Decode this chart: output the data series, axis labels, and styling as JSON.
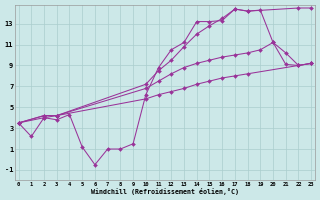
{
  "background_color": "#cce8e8",
  "grid_color": "#aacece",
  "line_color": "#993399",
  "xlim": [
    -0.3,
    23.3
  ],
  "ylim": [
    -2.0,
    14.8
  ],
  "xticks": [
    0,
    1,
    2,
    3,
    4,
    5,
    6,
    7,
    8,
    9,
    10,
    11,
    12,
    13,
    14,
    15,
    16,
    17,
    18,
    19,
    20,
    21,
    22,
    23
  ],
  "yticks": [
    -1,
    1,
    3,
    5,
    7,
    9,
    11,
    13
  ],
  "xlabel": "Windchill (Refroidissement éolien,°C)",
  "curves": [
    {
      "x": [
        0,
        1,
        2,
        3,
        4,
        5,
        6,
        7,
        8,
        9,
        10,
        11,
        12,
        13,
        14,
        15,
        16,
        17,
        18,
        19,
        20,
        21,
        22,
        23
      ],
      "y": [
        3.5,
        2.2,
        4.0,
        3.8,
        4.3,
        1.2,
        -0.5,
        1.0,
        1.0,
        1.5,
        6.2,
        8.8,
        10.5,
        11.2,
        13.2,
        13.2,
        13.3,
        14.4,
        14.2,
        14.3,
        11.2,
        9.1,
        9.0,
        9.2
      ]
    },
    {
      "x": [
        0,
        2,
        3,
        10,
        11,
        12,
        13,
        14,
        15,
        16,
        17,
        18,
        22,
        23
      ],
      "y": [
        3.5,
        4.2,
        4.2,
        7.2,
        8.5,
        9.5,
        10.8,
        12.0,
        12.8,
        13.5,
        14.4,
        14.2,
        14.5,
        14.5
      ]
    },
    {
      "x": [
        0,
        2,
        3,
        10,
        11,
        12,
        13,
        14,
        15,
        16,
        17,
        18,
        19,
        20,
        21,
        22,
        23
      ],
      "y": [
        3.5,
        4.2,
        4.2,
        6.8,
        7.5,
        8.2,
        8.8,
        9.2,
        9.5,
        9.8,
        10.0,
        10.2,
        10.5,
        11.2,
        10.2,
        9.0,
        9.2
      ]
    },
    {
      "x": [
        0,
        2,
        3,
        10,
        11,
        12,
        13,
        14,
        15,
        16,
        17,
        18,
        22,
        23
      ],
      "y": [
        3.5,
        4.0,
        4.2,
        5.8,
        6.2,
        6.5,
        6.8,
        7.2,
        7.5,
        7.8,
        8.0,
        8.2,
        9.0,
        9.2
      ]
    }
  ]
}
